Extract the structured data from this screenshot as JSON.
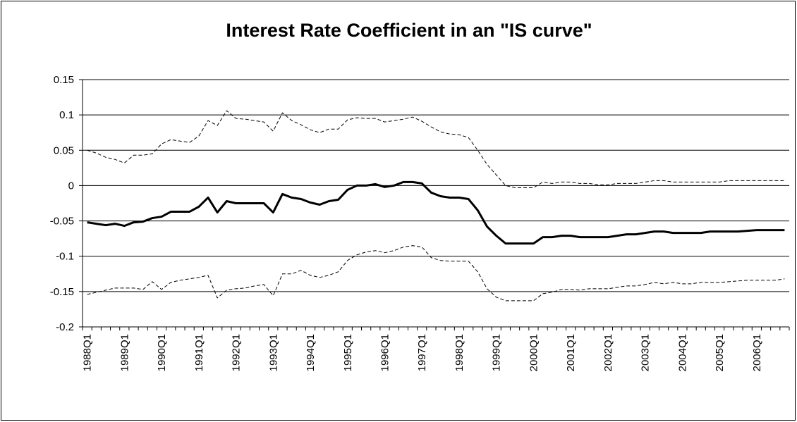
{
  "chart_data": {
    "type": "line",
    "title": "Interest Rate Coefficient in an \"IS curve\"",
    "categories": [
      "1988Q1",
      null,
      null,
      null,
      "1989Q1",
      null,
      null,
      null,
      "1990Q1",
      null,
      null,
      null,
      "1991Q1",
      null,
      null,
      null,
      "1992Q1",
      null,
      null,
      null,
      "1993Q1",
      null,
      null,
      null,
      "1994Q1",
      null,
      null,
      null,
      "1995Q1",
      null,
      null,
      null,
      "1996Q1",
      null,
      null,
      null,
      "1997Q1",
      null,
      null,
      null,
      "1998Q1",
      null,
      null,
      null,
      "1999Q1",
      null,
      null,
      null,
      "2000Q1",
      null,
      null,
      null,
      "2001Q1",
      null,
      null,
      null,
      "2002Q1",
      null,
      null,
      null,
      "2003Q1",
      null,
      null,
      null,
      "2004Q1",
      null,
      null,
      null,
      "2005Q1",
      null,
      null,
      null,
      "2006Q1",
      null,
      null,
      null
    ],
    "series": [
      {
        "color": "#000000",
        "dashed": false,
        "values": [
          -0.052,
          -0.054,
          -0.056,
          -0.054,
          -0.057,
          -0.052,
          -0.051,
          -0.046,
          -0.044,
          -0.037,
          -0.037,
          -0.037,
          -0.03,
          -0.017,
          -0.038,
          -0.022,
          -0.025,
          -0.025,
          -0.025,
          -0.025,
          -0.038,
          -0.012,
          -0.017,
          -0.019,
          -0.024,
          -0.027,
          -0.022,
          -0.02,
          -0.006,
          0.0,
          0.0,
          0.002,
          -0.002,
          0.0,
          0.005,
          0.005,
          0.003,
          -0.01,
          -0.015,
          -0.017,
          -0.017,
          -0.019,
          -0.035,
          -0.058,
          -0.071,
          -0.082,
          -0.082,
          -0.082,
          -0.082,
          -0.073,
          -0.073,
          -0.071,
          -0.071,
          -0.073,
          -0.073,
          -0.073,
          -0.073,
          -0.071,
          -0.069,
          -0.069,
          -0.067,
          -0.065,
          -0.065,
          -0.067,
          -0.067,
          -0.067,
          -0.067,
          -0.065,
          -0.065,
          -0.065,
          -0.065,
          -0.064,
          -0.063,
          -0.063,
          -0.063,
          -0.063
        ]
      },
      {
        "color": "#000000",
        "dashed": true,
        "values": [
          0.05,
          0.046,
          0.04,
          0.037,
          0.032,
          0.043,
          0.043,
          0.045,
          0.059,
          0.065,
          0.063,
          0.061,
          0.07,
          0.092,
          0.085,
          0.106,
          0.095,
          0.094,
          0.092,
          0.09,
          0.077,
          0.103,
          0.092,
          0.086,
          0.079,
          0.075,
          0.08,
          0.08,
          0.093,
          0.096,
          0.095,
          0.095,
          0.09,
          0.092,
          0.094,
          0.097,
          0.091,
          0.083,
          0.076,
          0.073,
          0.072,
          0.068,
          0.05,
          0.03,
          0.015,
          0.0,
          -0.003,
          -0.003,
          -0.003,
          0.005,
          0.003,
          0.005,
          0.005,
          0.003,
          0.003,
          0.001,
          0.001,
          0.003,
          0.003,
          0.003,
          0.005,
          0.007,
          0.007,
          0.005,
          0.005,
          0.005,
          0.005,
          0.005,
          0.005,
          0.007,
          0.007,
          0.007,
          0.007,
          0.007,
          0.007,
          0.007
        ]
      },
      {
        "color": "#000000",
        "dashed": true,
        "values": [
          -0.154,
          -0.151,
          -0.148,
          -0.145,
          -0.145,
          -0.145,
          -0.147,
          -0.136,
          -0.147,
          -0.137,
          -0.134,
          -0.132,
          -0.13,
          -0.127,
          -0.159,
          -0.148,
          -0.146,
          -0.145,
          -0.142,
          -0.14,
          -0.156,
          -0.125,
          -0.125,
          -0.12,
          -0.127,
          -0.13,
          -0.127,
          -0.122,
          -0.106,
          -0.098,
          -0.094,
          -0.092,
          -0.095,
          -0.092,
          -0.087,
          -0.085,
          -0.087,
          -0.102,
          -0.106,
          -0.107,
          -0.107,
          -0.107,
          -0.122,
          -0.146,
          -0.158,
          -0.163,
          -0.163,
          -0.163,
          -0.163,
          -0.153,
          -0.151,
          -0.147,
          -0.147,
          -0.148,
          -0.146,
          -0.146,
          -0.146,
          -0.144,
          -0.142,
          -0.142,
          -0.14,
          -0.137,
          -0.139,
          -0.137,
          -0.139,
          -0.139,
          -0.137,
          -0.137,
          -0.137,
          -0.136,
          -0.135,
          -0.134,
          -0.134,
          -0.134,
          -0.134,
          -0.132
        ]
      }
    ],
    "ylim": [
      -0.2,
      0.15
    ],
    "yticks": [
      -0.2,
      -0.15,
      -0.1,
      -0.05,
      0,
      0.05,
      0.1,
      0.15
    ],
    "grid": true
  }
}
